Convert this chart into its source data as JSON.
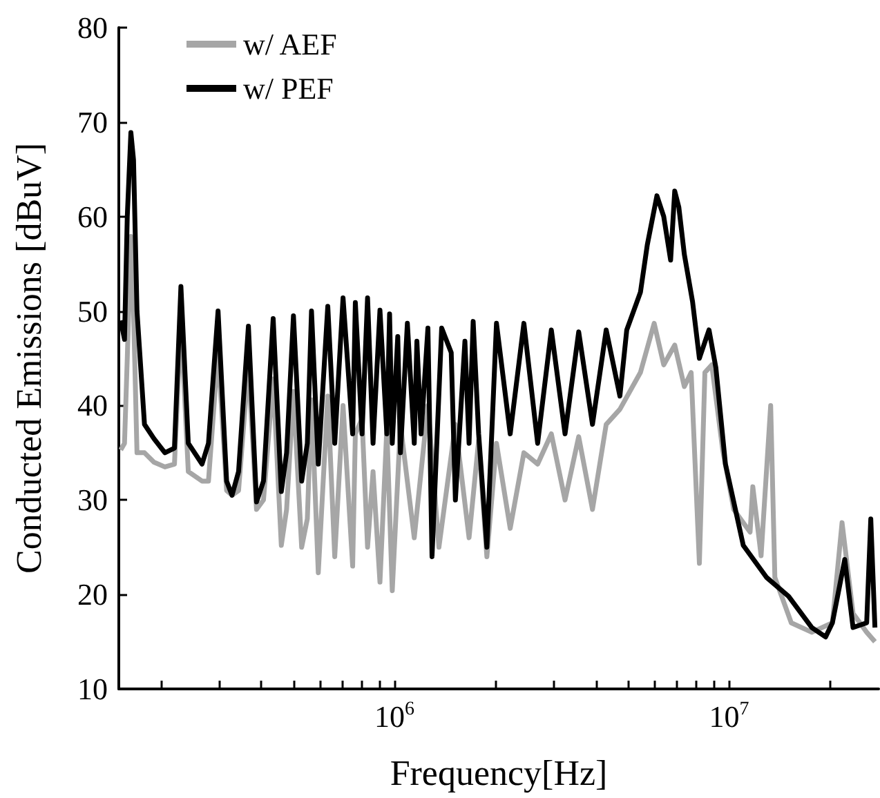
{
  "chart_data": {
    "type": "line",
    "xlabel": "Frequency[Hz]",
    "ylabel": "Conducted Emissions [dBuV]",
    "log": "x",
    "legend": "top left",
    "grid": false,
    "xlim": [
      150000,
      28000000
    ],
    "ylim": [
      10,
      80
    ],
    "xticks": [
      {
        "value": 200000,
        "label": null
      },
      {
        "value": 300000,
        "label": null
      },
      {
        "value": 400000,
        "label": null
      },
      {
        "value": 500000,
        "label": null
      },
      {
        "value": 600000,
        "label": null
      },
      {
        "value": 700000,
        "label": null
      },
      {
        "value": 800000,
        "label": null
      },
      {
        "value": 900000,
        "label": null
      },
      {
        "value": 1000000,
        "label": "10$^{6}$"
      },
      {
        "value": 2000000,
        "label": null
      },
      {
        "value": 3000000,
        "label": null
      },
      {
        "value": 4000000,
        "label": null
      },
      {
        "value": 5000000,
        "label": null
      },
      {
        "value": 6000000,
        "label": null
      },
      {
        "value": 7000000,
        "label": null
      },
      {
        "value": 8000000,
        "label": null
      },
      {
        "value": 9000000,
        "label": null
      },
      {
        "value": 10000000,
        "label": "10$^{7}$"
      },
      {
        "value": 20000000,
        "label": null
      }
    ],
    "yticks": [
      10,
      20,
      30,
      40,
      50,
      60,
      70,
      80
    ],
    "series": [
      {
        "name": "w/ AEF",
        "color": "#a6a6a6",
        "x": [
          152000,
          156000,
          159000,
          163000,
          166000,
          170000,
          179000,
          191000,
          206000,
          220000,
          230000,
          242000,
          266000,
          278000,
          297000,
          315000,
          327000,
          342000,
          366000,
          387000,
          406000,
          434000,
          459000,
          476000,
          499000,
          528000,
          549000,
          565000,
          592000,
          632000,
          663000,
          702000,
          750000,
          764000,
          800000,
          831000,
          863000,
          905000,
          949000,
          985000,
          1042000,
          1146000,
          1259000,
          1358000,
          1521000,
          1671000,
          1785000,
          1889000,
          2018000,
          2218000,
          2437000,
          2679000,
          2944000,
          3235000,
          3554000,
          3907000,
          4294000,
          4719000,
          5436000,
          5974000,
          6381000,
          6882000,
          7352000,
          7706000,
          8155000,
          8470000,
          8880000,
          9575000,
          10330000,
          11560000,
          11780000,
          12470000,
          13320000,
          13710000,
          15350000,
          17680000,
          20370000,
          21770000,
          23480000,
          25790000,
          27300000
        ],
        "values": [
          35.3,
          36,
          45,
          57.9,
          50,
          35,
          35,
          34,
          33.5,
          33.8,
          49,
          33,
          32,
          32,
          45.8,
          31,
          30.5,
          31,
          44.3,
          29,
          30,
          42.8,
          25.2,
          29,
          41.5,
          25,
          28,
          40.6,
          22.3,
          41,
          24,
          40,
          23,
          37,
          38.6,
          25,
          33,
          21.3,
          37.6,
          20.4,
          38,
          26,
          40,
          25,
          38,
          26,
          36.3,
          24,
          36,
          27,
          35,
          33.8,
          37,
          30,
          36.7,
          29,
          38,
          39.6,
          43.5,
          48.7,
          44.3,
          46.4,
          42,
          43.5,
          23.3,
          43.5,
          44.3,
          35.3,
          29,
          26.6,
          31.4,
          24.1,
          40,
          21.8,
          17,
          16,
          17,
          27.6,
          18,
          16,
          15
        ]
      },
      {
        "name": "w/ PEF",
        "color": "#000000",
        "x": [
          152000,
          156000,
          159000,
          163000,
          166000,
          170000,
          179000,
          191000,
          206000,
          220000,
          230000,
          242000,
          266000,
          278000,
          297000,
          315000,
          327000,
          342000,
          366000,
          387000,
          406000,
          434000,
          459000,
          476000,
          499000,
          528000,
          549000,
          565000,
          592000,
          632000,
          663000,
          702000,
          750000,
          764000,
          800000,
          831000,
          863000,
          905000,
          949000,
          967000,
          985000,
          1023000,
          1042000,
          1093000,
          1146000,
          1167000,
          1201000,
          1259000,
          1295000,
          1384000,
          1478000,
          1521000,
          1624000,
          1671000,
          1719000,
          1785000,
          1889000,
          2018000,
          2218000,
          2437000,
          2679000,
          2944000,
          3235000,
          3554000,
          3907000,
          4294000,
          4719000,
          4947000,
          5186000,
          5436000,
          5698000,
          6088000,
          6381000,
          6690000,
          6882000,
          7079000,
          7352000,
          7780000,
          8155000,
          8714000,
          9135000,
          9757000,
          11030000,
          12950000,
          15070000,
          17680000,
          19440000,
          20370000,
          22180000,
          23480000,
          25790000,
          26530000,
          27300000
        ],
        "values": [
          49,
          47,
          60,
          68.9,
          66,
          50,
          38,
          36.5,
          35,
          35.5,
          52.6,
          36,
          33.8,
          36,
          50,
          32,
          30.5,
          33,
          48.4,
          29.8,
          32,
          49.2,
          30.9,
          35,
          49.5,
          32,
          36,
          50,
          33.8,
          50.5,
          36,
          51.4,
          37,
          50.9,
          37,
          51.4,
          36,
          50.1,
          37,
          49.7,
          36,
          47.3,
          35,
          48.7,
          36,
          46.8,
          37,
          48.2,
          24,
          48.2,
          45.6,
          30,
          46.8,
          36,
          48.9,
          37,
          25,
          48.7,
          37,
          48.7,
          36,
          48,
          37,
          47.8,
          38,
          48,
          41,
          48,
          50,
          52,
          57,
          62.2,
          60,
          55.4,
          62.7,
          61,
          56,
          51,
          45,
          48,
          44,
          33.8,
          25.2,
          21.8,
          19.8,
          16.5,
          15.5,
          17,
          23.7,
          16.5,
          17,
          28,
          16.5
        ]
      }
    ]
  }
}
